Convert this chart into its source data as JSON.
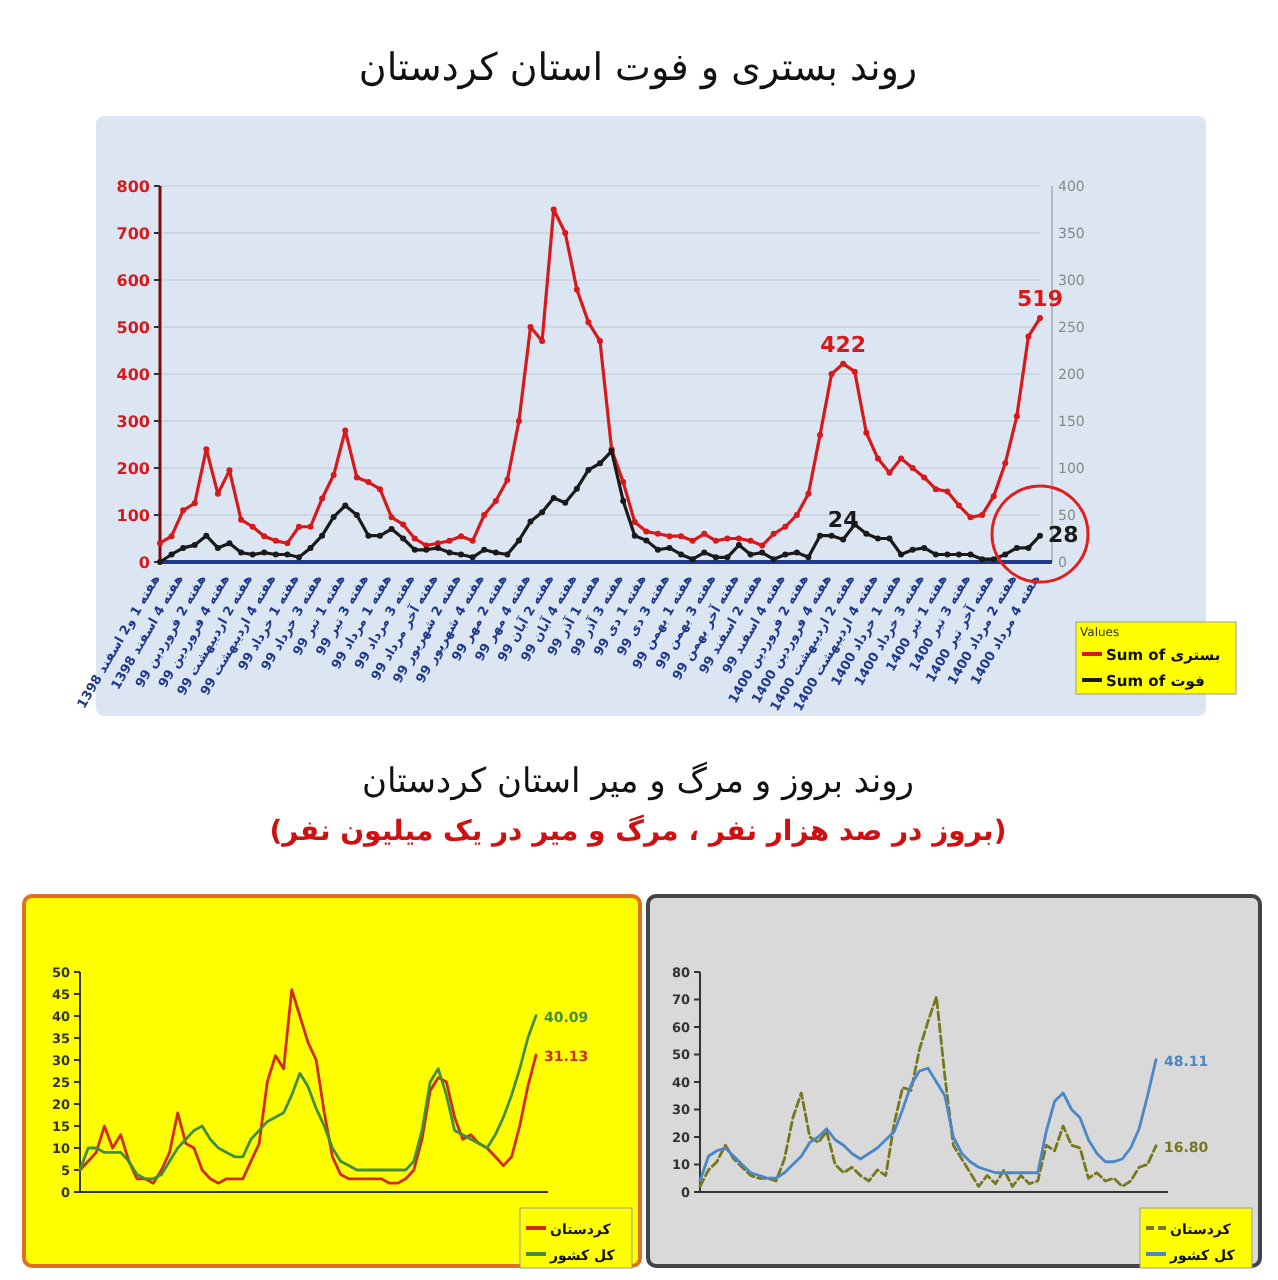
{
  "chart_data": [
    {
      "type": "line",
      "title": "روند بستری و فوت استان کردستان",
      "categories": [
        "هفته 1 و2 اسفند 1398",
        null,
        "هفته 4 اسفند 1398",
        null,
        "هفته 2 فروردین 99",
        null,
        "هفته 4 فروردین 99",
        null,
        "هفته 2 اردیبهشت 99",
        null,
        "هفته 4 اردیبهشت 99",
        null,
        "هفته 1 خرداد 99",
        null,
        "هفته 3 خرداد 99",
        null,
        "هفته 1 تیر 99",
        null,
        "هفته 3 تیر 99",
        null,
        "هفته 1 مرداد 99",
        null,
        "هفته 3 مرداد 99",
        null,
        "هفته آخر مرداد 99",
        null,
        "هفته 2 شهریور 99",
        null,
        "هفته 4 شهریور 99",
        null,
        "هفته 2 مهر 99",
        null,
        "هفته 4 مهر 99",
        null,
        "هفته 2 آبان 99",
        null,
        "هفته 4 آبان 99",
        null,
        "هفته 1 آذر 99",
        null,
        "هفته 3 آذر 99",
        null,
        "هفته 1 دی 99",
        null,
        "هفته 3 دی 99",
        null,
        "هفته 1 بهمن 99",
        null,
        "هفته 3 بهمن 99",
        null,
        "هفته آخر بهمن 99",
        null,
        "هفته 2 اسفند 99",
        null,
        "هفته 4 اسفند 99",
        null,
        "هفته 2 فروردین 1400",
        null,
        "هفته 4 فروردین 1400",
        null,
        "هفته 2 اردیبهشت 1400",
        null,
        "هفته 4 اردیبهشت 1400",
        null,
        "هفته 1 خرداد 1400",
        null,
        "هفته 3 خرداد 1400",
        null,
        "هفته 1 تیر 1400",
        null,
        "هفته 3 تیر 1400",
        null,
        "هفته آخر تیر 1400",
        null,
        "هفته 2 مرداد 1400",
        null,
        "هفته 4 مرداد 1400"
      ],
      "series": [
        {
          "name": "Sum of بستری",
          "color": "#d7191c",
          "values": [
            40,
            55,
            110,
            125,
            240,
            145,
            195,
            90,
            75,
            55,
            45,
            40,
            75,
            75,
            135,
            185,
            280,
            180,
            170,
            155,
            95,
            80,
            50,
            35,
            40,
            45,
            55,
            45,
            100,
            130,
            175,
            300,
            500,
            470,
            750,
            700,
            580,
            510,
            470,
            240,
            170,
            85,
            65,
            60,
            55,
            55,
            45,
            60,
            45,
            50,
            50,
            45,
            35,
            60,
            75,
            100,
            145,
            270,
            400,
            422,
            405,
            275,
            220,
            190,
            220,
            200,
            180,
            155,
            150,
            120,
            95,
            100,
            140,
            210,
            310,
            480,
            519
          ],
          "value_labels": [
            null,
            null,
            null,
            null,
            null,
            null,
            null,
            null,
            null,
            null,
            null,
            null,
            null,
            null,
            null,
            null,
            null,
            null,
            null,
            null,
            null,
            null,
            null,
            null,
            null,
            null,
            null,
            null,
            null,
            null,
            null,
            null,
            null,
            null,
            null,
            null,
            null,
            null,
            null,
            null,
            null,
            null,
            null,
            null,
            null,
            null,
            null,
            null,
            null,
            null,
            null,
            null,
            null,
            null,
            null,
            null,
            null,
            null,
            null,
            "422",
            null,
            null,
            null,
            null,
            null,
            null,
            null,
            null,
            null,
            null,
            null,
            null,
            null,
            null,
            null,
            null,
            "519"
          ]
        },
        {
          "name": "Sum of فوت",
          "color": "#1a1a1a",
          "axis": "y2",
          "values": [
            0,
            8,
            15,
            18,
            28,
            15,
            20,
            10,
            8,
            10,
            8,
            8,
            5,
            15,
            28,
            48,
            60,
            50,
            28,
            28,
            35,
            25,
            13,
            13,
            15,
            10,
            8,
            5,
            13,
            10,
            8,
            23,
            43,
            53,
            68,
            63,
            78,
            98,
            105,
            118,
            65,
            28,
            23,
            13,
            15,
            8,
            3,
            10,
            5,
            5,
            18,
            8,
            10,
            3,
            8,
            10,
            5,
            28,
            28,
            24,
            40,
            30,
            25,
            25,
            8,
            13,
            15,
            8,
            8,
            8,
            8,
            3,
            3,
            8,
            15,
            15,
            28
          ],
          "value_labels": [
            null,
            null,
            null,
            null,
            null,
            null,
            null,
            null,
            null,
            null,
            null,
            null,
            null,
            null,
            null,
            null,
            null,
            null,
            null,
            null,
            null,
            null,
            null,
            null,
            null,
            null,
            null,
            null,
            null,
            null,
            null,
            null,
            null,
            null,
            null,
            null,
            null,
            null,
            null,
            null,
            null,
            null,
            null,
            null,
            null,
            null,
            null,
            null,
            null,
            null,
            null,
            null,
            null,
            null,
            null,
            null,
            null,
            null,
            null,
            "24",
            null,
            null,
            null,
            null,
            null,
            null,
            null,
            null,
            null,
            null,
            null,
            null,
            null,
            null,
            null,
            null,
            "28"
          ]
        }
      ],
      "ylim": [
        0,
        800
      ],
      "yticks": [
        0,
        100,
        200,
        300,
        400,
        500,
        600,
        700,
        800
      ],
      "y2lim": [
        0,
        400
      ],
      "y2ticks": [
        0,
        50,
        100,
        150,
        200,
        250,
        300,
        350,
        400
      ],
      "grid": "y",
      "legend": "bottom right",
      "legend_title": "Values",
      "marker": "circle"
    },
    {
      "type": "line",
      "title": "روند بروز و مرگ و میر استان کردستان",
      "subtitle": "(بروز در صد هزار نفر ، مرگ و میر در یک میلیون نفر)",
      "categories": [
        null,
        null,
        null,
        null,
        null,
        null,
        null,
        null,
        null,
        null,
        null,
        null,
        null,
        null,
        null,
        null,
        null,
        null,
        null,
        null,
        null,
        null,
        null,
        null,
        null,
        null,
        null,
        null,
        null,
        null,
        null,
        null,
        null,
        null,
        null,
        null,
        null,
        null,
        null,
        null,
        null,
        null,
        null,
        null,
        null,
        null,
        null,
        null,
        null,
        null,
        null,
        null,
        null,
        null,
        null,
        null,
        null
      ],
      "series": [
        {
          "name": "کردستان",
          "color": "#d42a1a",
          "values": [
            5,
            7,
            9,
            15,
            10,
            13,
            7,
            3,
            3,
            2,
            5,
            9,
            18,
            11,
            10,
            5,
            3,
            2,
            3,
            3,
            3,
            7,
            11,
            25,
            31,
            28,
            46,
            40,
            34,
            30,
            18,
            8,
            4,
            3,
            3,
            3,
            3,
            3,
            2,
            2,
            3,
            5,
            12,
            23,
            26,
            25,
            17,
            12,
            13,
            11,
            10,
            8,
            6,
            8,
            15,
            24,
            31.13
          ],
          "value_labels": [
            null,
            null,
            null,
            null,
            null,
            null,
            null,
            null,
            null,
            null,
            null,
            null,
            null,
            null,
            null,
            null,
            null,
            null,
            null,
            null,
            null,
            null,
            null,
            null,
            null,
            null,
            null,
            null,
            null,
            null,
            null,
            null,
            null,
            null,
            null,
            null,
            null,
            null,
            null,
            null,
            null,
            null,
            null,
            null,
            null,
            null,
            null,
            null,
            null,
            null,
            null,
            null,
            null,
            null,
            null,
            null,
            "31.13"
          ]
        },
        {
          "name": "کل کشور",
          "color": "#3f8f3f",
          "values": [
            5,
            10,
            10,
            9,
            9,
            9,
            7,
            4,
            3,
            3,
            4,
            7,
            10,
            12,
            14,
            15,
            12,
            10,
            9,
            8,
            8,
            12,
            14,
            16,
            17,
            18,
            22,
            27,
            24,
            19,
            15,
            10,
            7,
            6,
            5,
            5,
            5,
            5,
            5,
            5,
            5,
            7,
            14,
            25,
            28,
            22,
            14,
            13,
            12,
            11,
            10,
            13,
            17,
            22,
            28,
            35,
            40.09
          ],
          "value_labels": [
            null,
            null,
            null,
            null,
            null,
            null,
            null,
            null,
            null,
            null,
            null,
            null,
            null,
            null,
            null,
            null,
            null,
            null,
            null,
            null,
            null,
            null,
            null,
            null,
            null,
            null,
            null,
            null,
            null,
            null,
            null,
            null,
            null,
            null,
            null,
            null,
            null,
            null,
            null,
            null,
            null,
            null,
            null,
            null,
            null,
            null,
            null,
            null,
            null,
            null,
            null,
            null,
            null,
            null,
            null,
            null,
            "40.09"
          ]
        }
      ],
      "ylim": [
        0,
        50
      ],
      "yticks": [
        0,
        5,
        10,
        15,
        20,
        25,
        30,
        35,
        40,
        45,
        50
      ],
      "legend": "bottom right"
    },
    {
      "type": "line",
      "categories": [
        null,
        null,
        null,
        null,
        null,
        null,
        null,
        null,
        null,
        null,
        null,
        null,
        null,
        null,
        null,
        null,
        null,
        null,
        null,
        null,
        null,
        null,
        null,
        null,
        null,
        null,
        null,
        null,
        null,
        null,
        null,
        null,
        null,
        null,
        null,
        null,
        null,
        null,
        null,
        null,
        null,
        null,
        null,
        null,
        null,
        null,
        null,
        null,
        null,
        null,
        null,
        null,
        null,
        null,
        null
      ],
      "series": [
        {
          "name": "کردستان",
          "color": "#77771c",
          "line_style": "dashed",
          "values": [
            2,
            8,
            11,
            17,
            12,
            9,
            6,
            5,
            5,
            4,
            12,
            27,
            36,
            20,
            18,
            22,
            10,
            7,
            9,
            6,
            4,
            8,
            6,
            25,
            38,
            37,
            52,
            62,
            71,
            42,
            17,
            12,
            7,
            2,
            6,
            3,
            8,
            2,
            6,
            3,
            4,
            17,
            15,
            24,
            17,
            16,
            5,
            7,
            4,
            5,
            2,
            4,
            9,
            10,
            16.8
          ],
          "value_labels": [
            null,
            null,
            null,
            null,
            null,
            null,
            null,
            null,
            null,
            null,
            null,
            null,
            null,
            null,
            null,
            null,
            null,
            null,
            null,
            null,
            null,
            null,
            null,
            null,
            null,
            null,
            null,
            null,
            null,
            null,
            null,
            null,
            null,
            null,
            null,
            null,
            null,
            null,
            null,
            null,
            null,
            null,
            null,
            null,
            null,
            null,
            null,
            null,
            null,
            null,
            null,
            null,
            null,
            null,
            "16.80"
          ]
        },
        {
          "name": "کل کشور",
          "color": "#4a86c8",
          "values": [
            4,
            13,
            15,
            16,
            13,
            10,
            7,
            6,
            5,
            5,
            7,
            10,
            13,
            18,
            20,
            23,
            19,
            17,
            14,
            12,
            14,
            16,
            19,
            22,
            30,
            39,
            44,
            45,
            40,
            35,
            20,
            14,
            11,
            9,
            8,
            7,
            7,
            7,
            7,
            7,
            7,
            22,
            33,
            36,
            30,
            27,
            19,
            14,
            11,
            11,
            12,
            16,
            23,
            35,
            48.11
          ],
          "value_labels": [
            null,
            null,
            null,
            null,
            null,
            null,
            null,
            null,
            null,
            null,
            null,
            null,
            null,
            null,
            null,
            null,
            null,
            null,
            null,
            null,
            null,
            null,
            null,
            null,
            null,
            null,
            null,
            null,
            null,
            null,
            null,
            null,
            null,
            null,
            null,
            null,
            null,
            null,
            null,
            null,
            null,
            null,
            null,
            null,
            null,
            null,
            null,
            null,
            null,
            null,
            null,
            null,
            null,
            null,
            "48.11"
          ]
        }
      ],
      "ylim": [
        0,
        80
      ],
      "yticks": [
        0,
        10,
        20,
        30,
        40,
        50,
        60,
        70,
        80
      ],
      "legend": "bottom right"
    }
  ]
}
